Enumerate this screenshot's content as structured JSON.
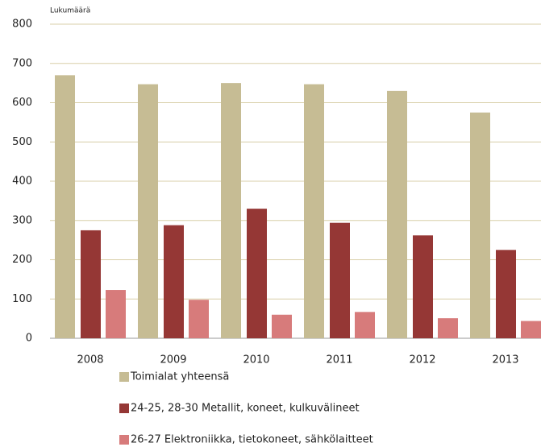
{
  "chart_data": {
    "type": "bar",
    "y_label": "Lukumäärä",
    "categories": [
      "2008",
      "2009",
      "2010",
      "2011",
      "2012",
      "2013"
    ],
    "series": [
      {
        "name": "Toimialat yhteensä",
        "color": "#c6bc94",
        "values": [
          670,
          647,
          650,
          647,
          630,
          575
        ]
      },
      {
        "name": "24-25, 28-30 Metallit, koneet, kulkuvälineet",
        "color": "#953735",
        "values": [
          275,
          288,
          330,
          294,
          262,
          225
        ]
      },
      {
        "name": "26-27 Elektroniikka, tietokoneet, sähkölaitteet",
        "color": "#d77b7b",
        "values": [
          123,
          98,
          60,
          67,
          51,
          44
        ]
      }
    ],
    "ylim": [
      0,
      800
    ],
    "yticks": [
      0,
      100,
      200,
      300,
      400,
      500,
      600,
      700,
      800
    ],
    "grid": true,
    "legend": "bottom"
  }
}
